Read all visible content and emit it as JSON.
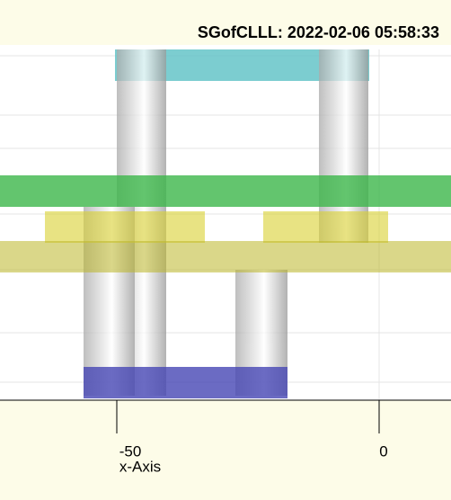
{
  "header": {
    "title": "SGofCLLL: 2022-02-06 05:58:33"
  },
  "axis": {
    "label": "x-Axis",
    "ticks": [
      "-50",
      "0"
    ]
  }
}
